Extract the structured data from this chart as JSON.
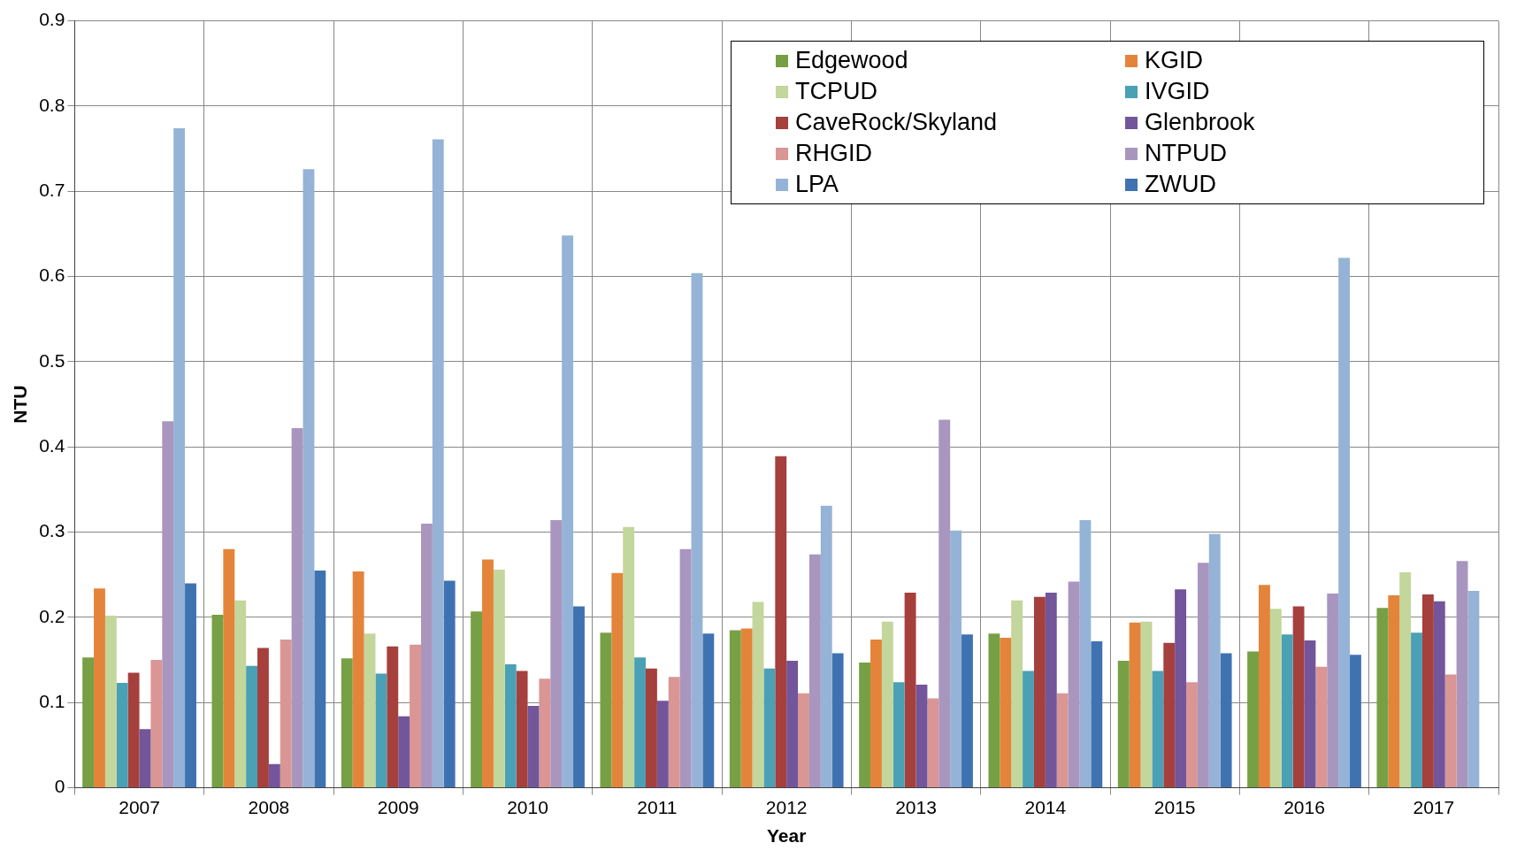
{
  "chart_data": {
    "type": "bar",
    "xlabel": "Year",
    "ylabel": "NTU",
    "categories": [
      "2007",
      "2008",
      "2009",
      "2010",
      "2011",
      "2012",
      "2013",
      "2014",
      "2015",
      "2016",
      "2017"
    ],
    "ylim": [
      0,
      0.9
    ],
    "yticks": [
      0,
      0.1,
      0.2,
      0.3,
      0.4,
      0.5,
      0.6,
      0.7,
      0.8,
      0.9
    ],
    "grid": true,
    "legend": "top right",
    "series": [
      {
        "name": "Edgewood",
        "color": "#77a045",
        "values": [
          0.153,
          0.203,
          0.152,
          0.207,
          0.182,
          0.185,
          0.147,
          0.181,
          0.149,
          0.16,
          0.211
        ]
      },
      {
        "name": "KGID",
        "color": "#e4843a",
        "values": [
          0.234,
          0.28,
          0.254,
          0.268,
          0.252,
          0.187,
          0.174,
          0.176,
          0.194,
          0.238,
          0.226
        ]
      },
      {
        "name": "TCPUD",
        "color": "#c3d69b",
        "values": [
          0.202,
          0.22,
          0.181,
          0.256,
          0.306,
          0.218,
          0.195,
          0.22,
          0.195,
          0.21,
          0.253
        ]
      },
      {
        "name": "IVGID",
        "color": "#4aa0b5",
        "values": [
          0.123,
          0.143,
          0.134,
          0.145,
          0.153,
          0.14,
          0.124,
          0.137,
          0.137,
          0.18,
          0.182
        ]
      },
      {
        "name": "CaveRock/Skyland",
        "color": "#a5403d",
        "values": [
          0.135,
          0.164,
          0.166,
          0.137,
          0.14,
          0.389,
          0.229,
          0.224,
          0.17,
          0.213,
          0.227
        ]
      },
      {
        "name": "Glenbrook",
        "color": "#72559a",
        "values": [
          0.069,
          0.028,
          0.084,
          0.096,
          0.102,
          0.149,
          0.121,
          0.229,
          0.233,
          0.173,
          0.219
        ]
      },
      {
        "name": "RHGID",
        "color": "#d99694",
        "values": [
          0.15,
          0.174,
          0.168,
          0.128,
          0.13,
          0.111,
          0.105,
          0.111,
          0.124,
          0.142,
          0.133
        ]
      },
      {
        "name": "NTPUD",
        "color": "#a896bf",
        "values": [
          0.43,
          0.422,
          0.31,
          0.314,
          0.28,
          0.274,
          0.432,
          0.242,
          0.264,
          0.228,
          0.266
        ]
      },
      {
        "name": "LPA",
        "color": "#95b3d7",
        "values": [
          0.774,
          0.726,
          0.761,
          0.648,
          0.604,
          0.331,
          0.302,
          0.314,
          0.298,
          0.622,
          0.231
        ]
      },
      {
        "name": "ZWUD",
        "color": "#3f72b0",
        "values": [
          0.24,
          0.255,
          0.243,
          0.213,
          0.181,
          0.158,
          0.18,
          0.172,
          0.158,
          0.156,
          null
        ]
      }
    ]
  }
}
